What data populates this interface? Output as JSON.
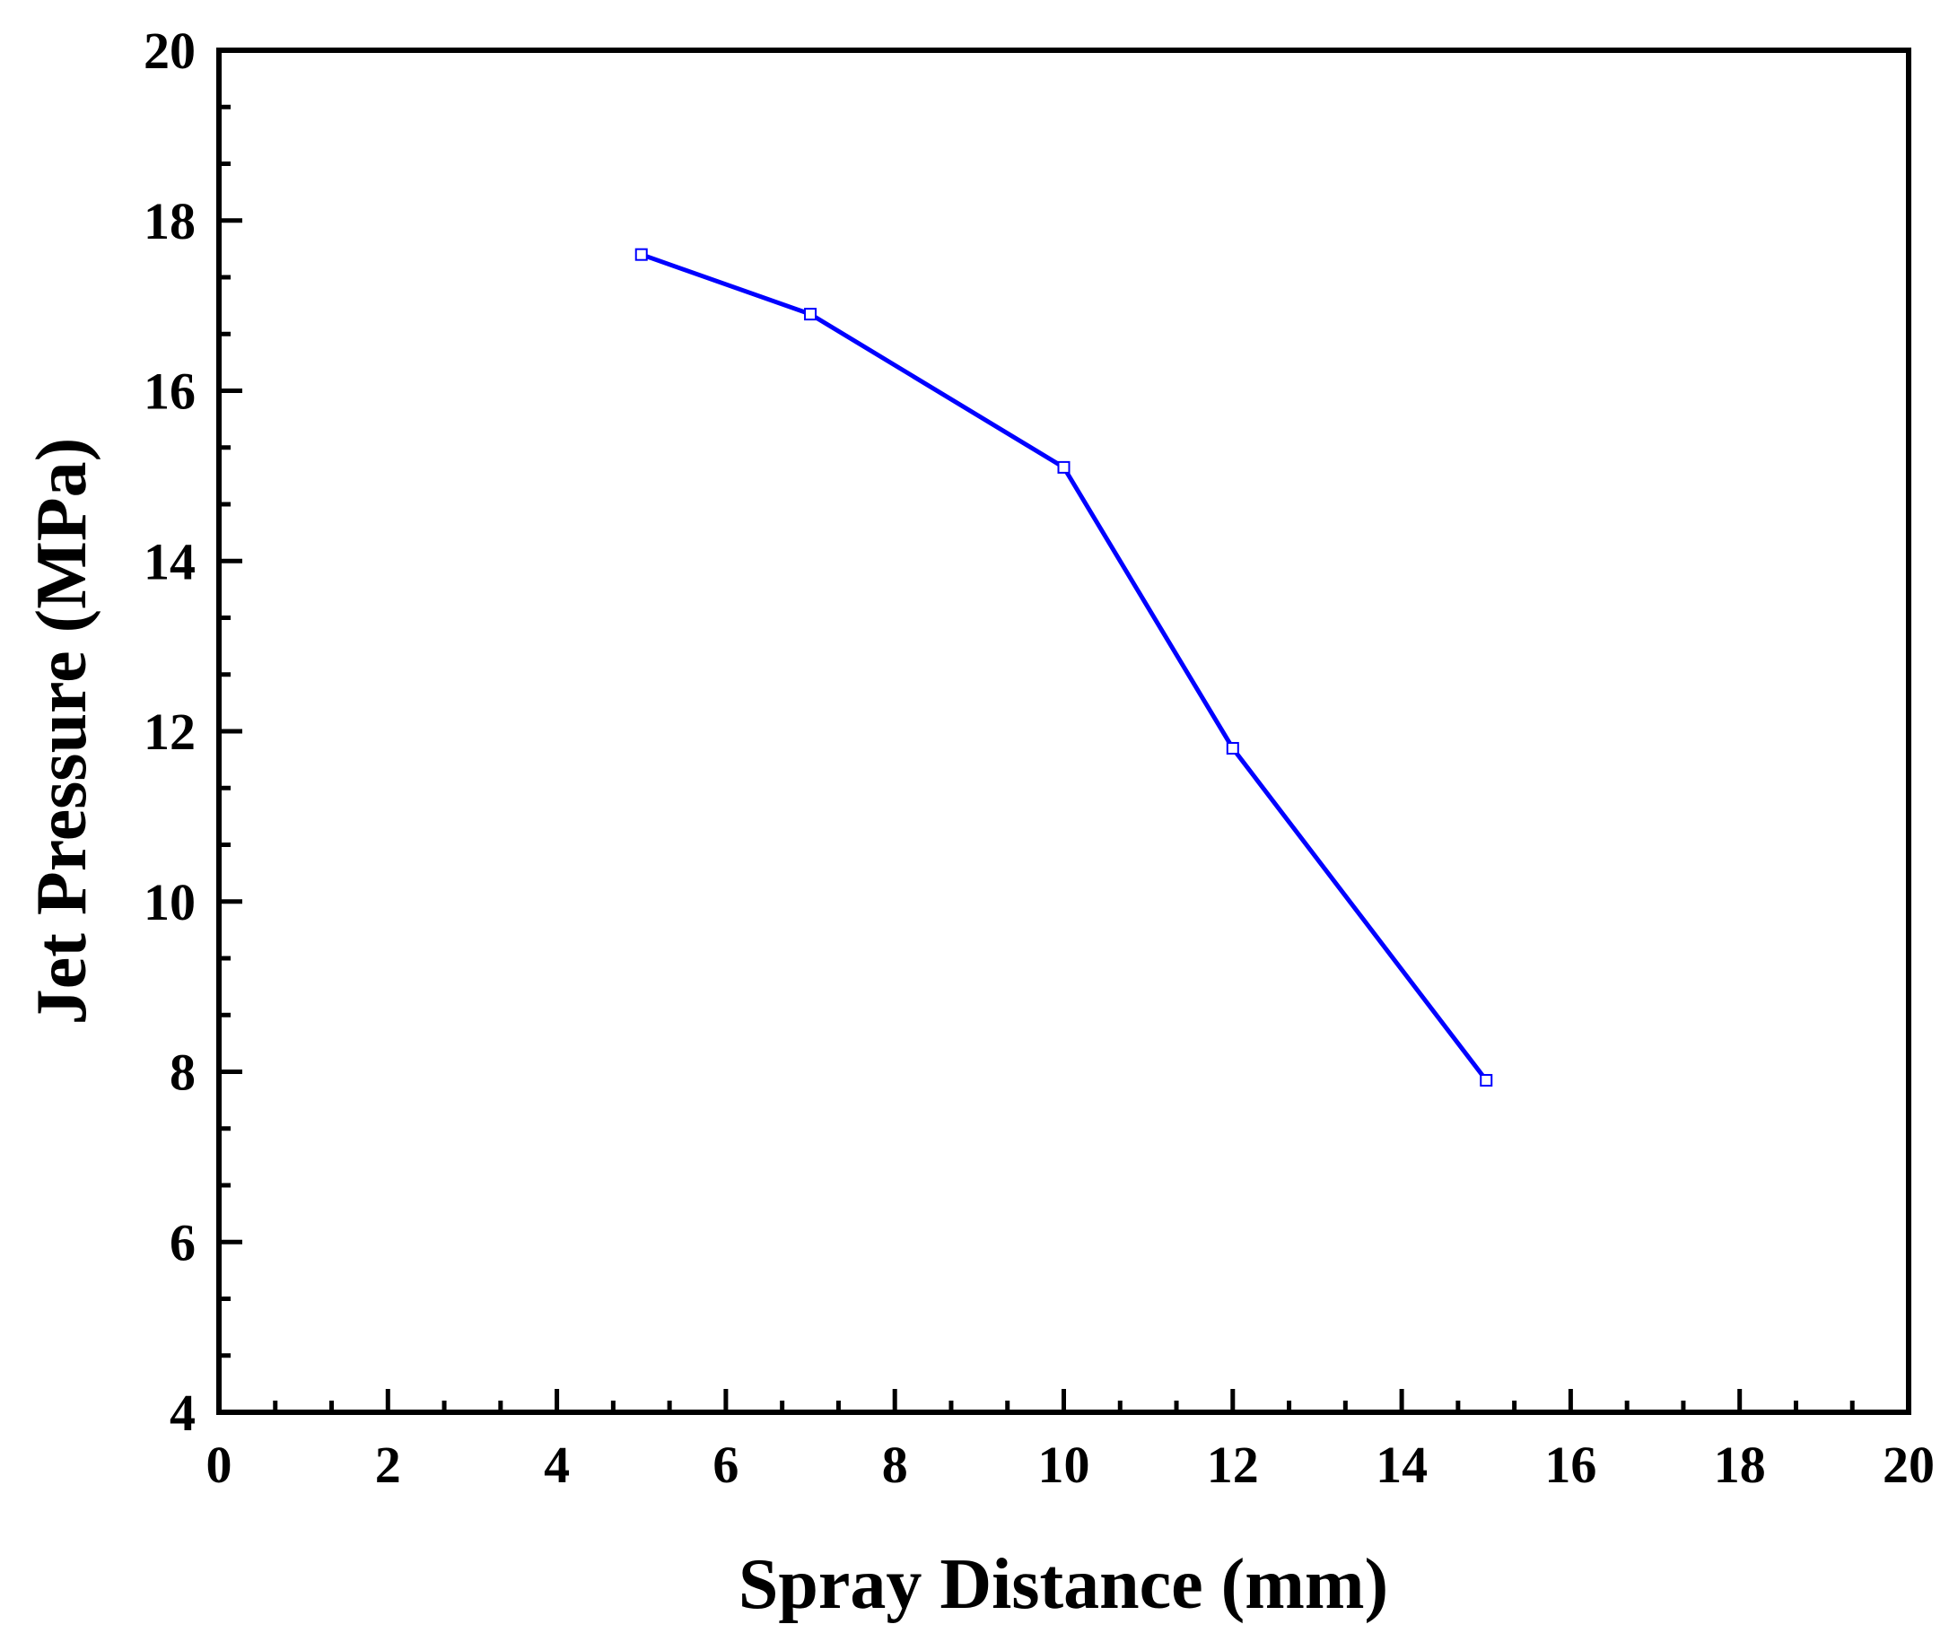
{
  "chart_data": {
    "type": "line",
    "title": "",
    "xlabel": "Spray Distance (mm)",
    "ylabel": "Jet Pressure (MPa)",
    "xlim": [
      0,
      20
    ],
    "ylim": [
      4,
      20
    ],
    "xticks": [
      "0",
      "2",
      "4",
      "6",
      "8",
      "10",
      "12",
      "14",
      "16",
      "18",
      "20"
    ],
    "yticks": [
      "4",
      "6",
      "8",
      "10",
      "12",
      "14",
      "16",
      "18",
      "20"
    ],
    "grid": false,
    "legend": "none",
    "series": [
      {
        "color": "#0000ff",
        "x": [
          5,
          7,
          10,
          12,
          15
        ],
        "y": [
          17.6,
          16.9,
          15.1,
          11.8,
          7.9
        ]
      }
    ]
  }
}
